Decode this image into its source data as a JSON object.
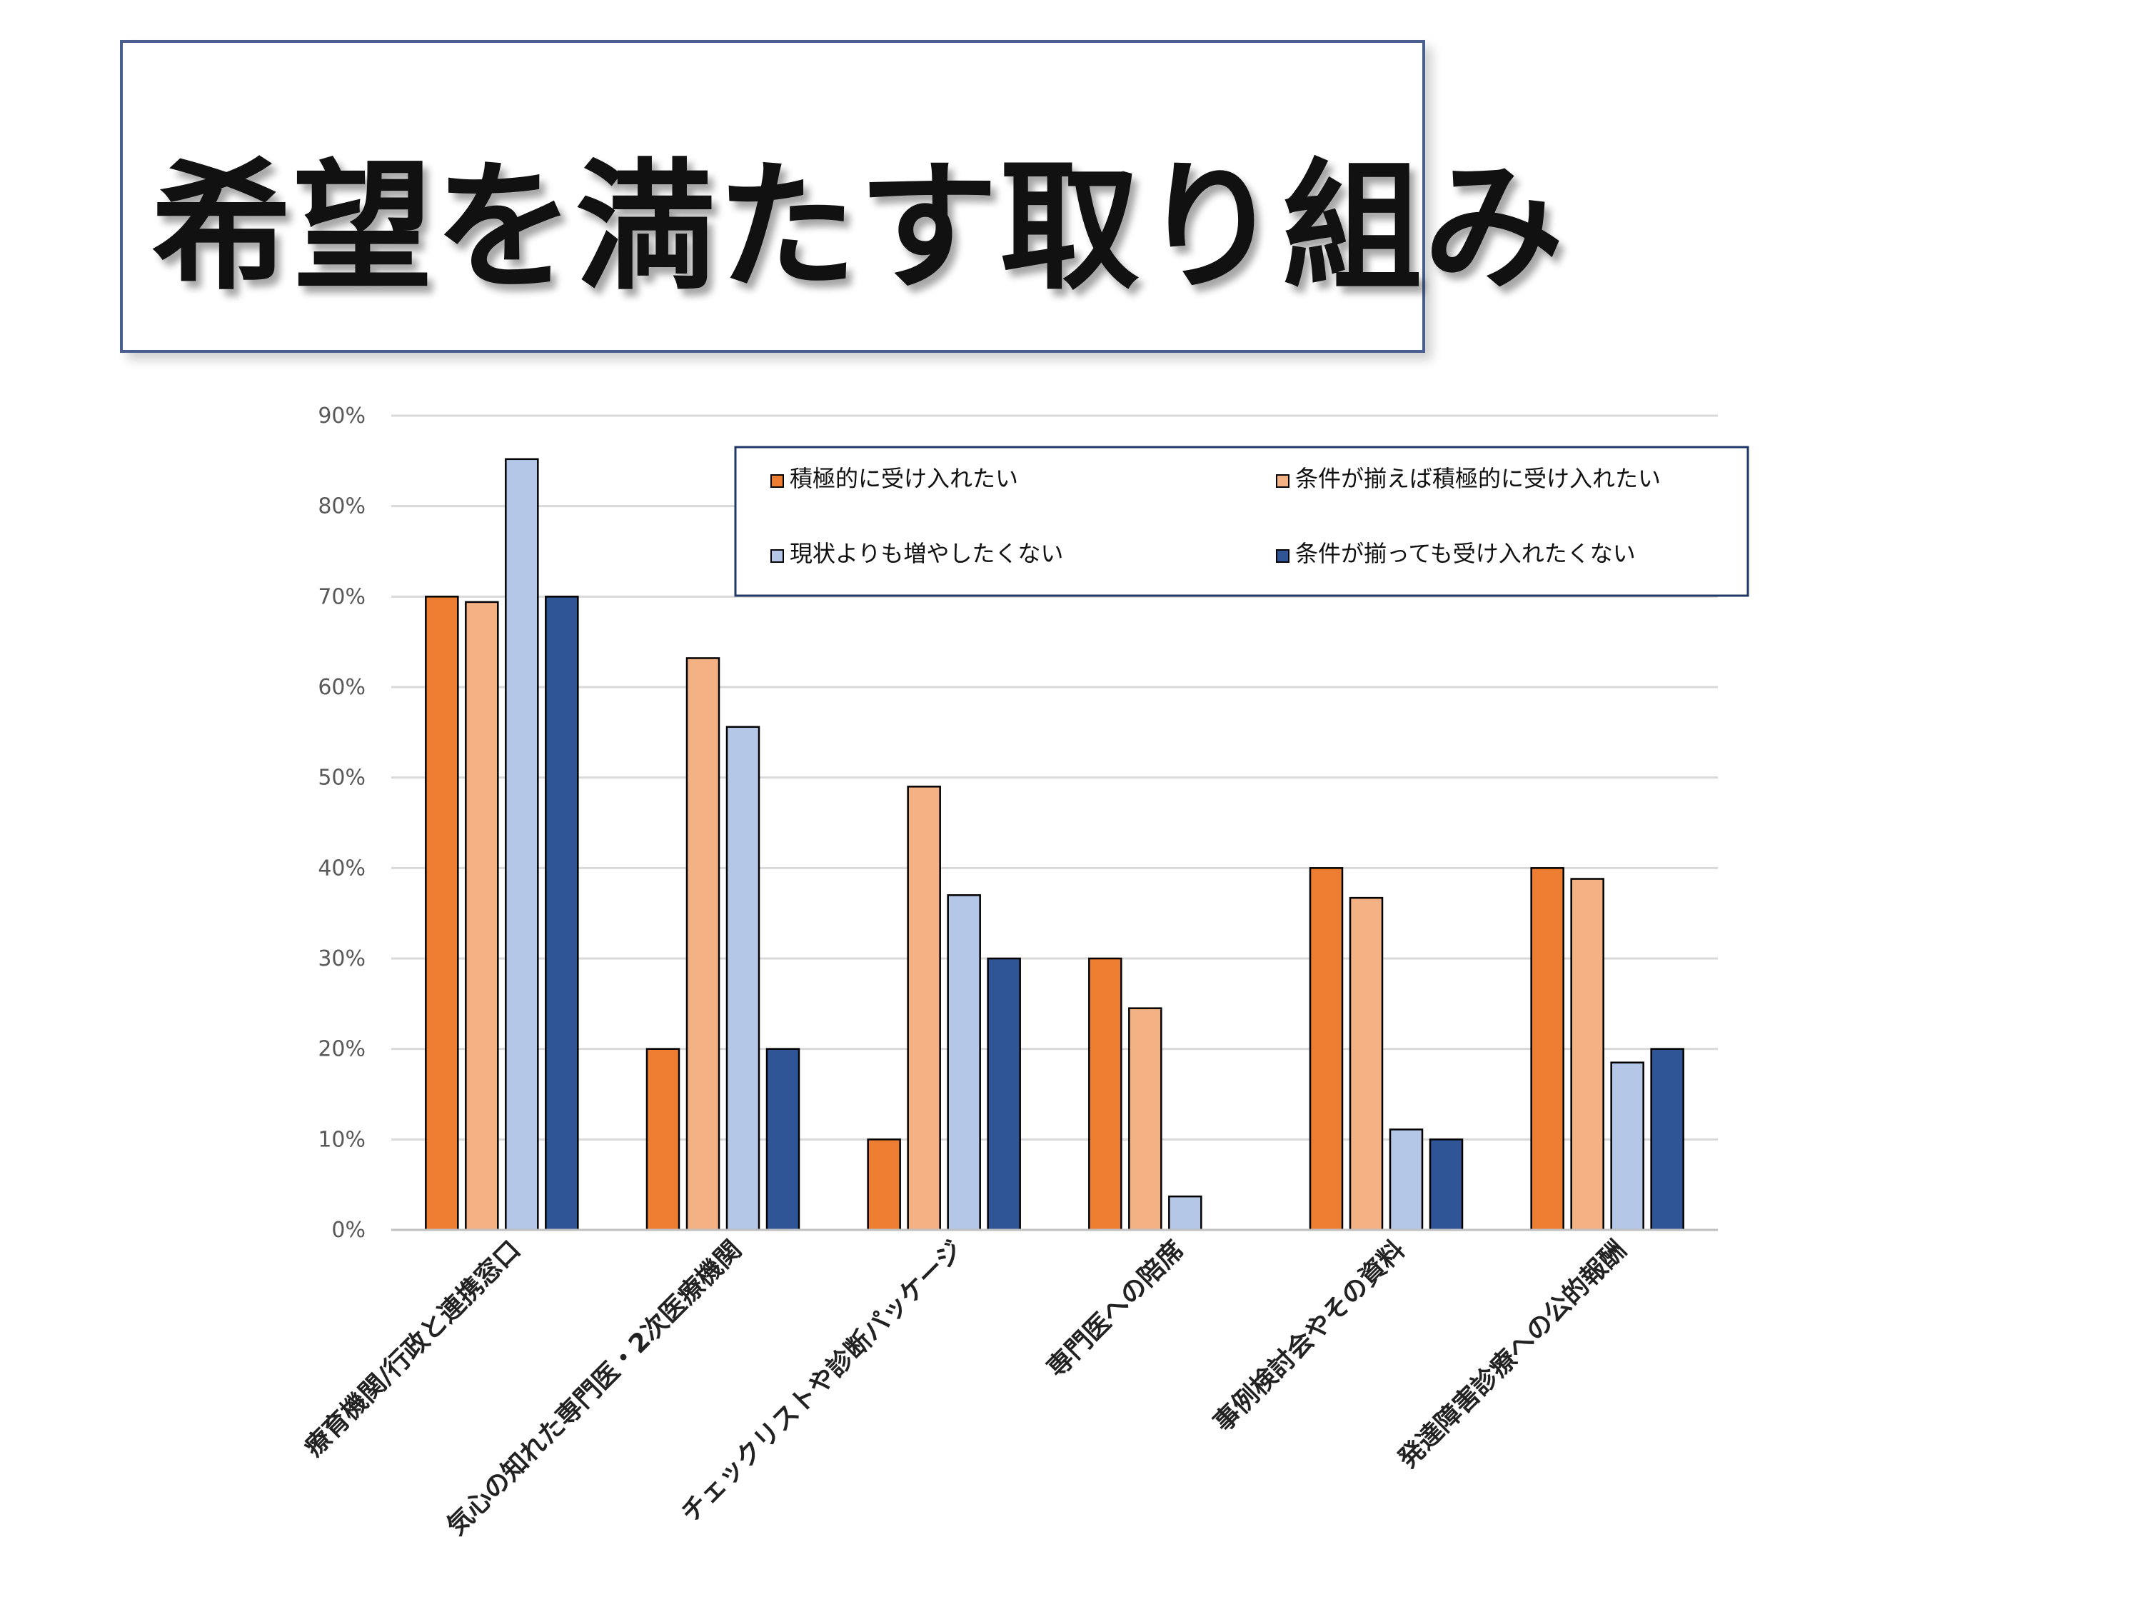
{
  "title": "希望を満たす取り組み",
  "chart_data": {
    "type": "bar",
    "categories": [
      "療育機関/行政と連携窓口",
      "気心の知れた専門医・2次医療機関",
      "チェックリストや診断パッケージ",
      "専門医への陪席",
      "事例検討会やその資料",
      "発達障害診療への公的報酬"
    ],
    "series": [
      {
        "name": "積極的に受け入れたい",
        "color": "#ed7d31",
        "values": [
          70,
          20,
          10,
          30,
          40,
          40
        ]
      },
      {
        "name": "条件が揃えば積極的に受け入れたい",
        "color": "#f4b183",
        "values": [
          69.4,
          63.2,
          49,
          24.5,
          36.7,
          38.8
        ]
      },
      {
        "name": "現状よりも増やしたくない",
        "color": "#b4c7e7",
        "values": [
          85.2,
          55.6,
          37,
          3.7,
          11.1,
          18.5
        ]
      },
      {
        "name": "条件が揃っても受け入れたくない",
        "color": "#2f5597",
        "values": [
          70,
          20,
          30,
          0,
          10,
          20
        ]
      }
    ],
    "yticks": [
      "0%",
      "10%",
      "20%",
      "30%",
      "40%",
      "50%",
      "60%",
      "70%",
      "80%",
      "90%"
    ],
    "ylim": [
      0,
      90
    ],
    "grid": true,
    "legend": "top-right"
  }
}
